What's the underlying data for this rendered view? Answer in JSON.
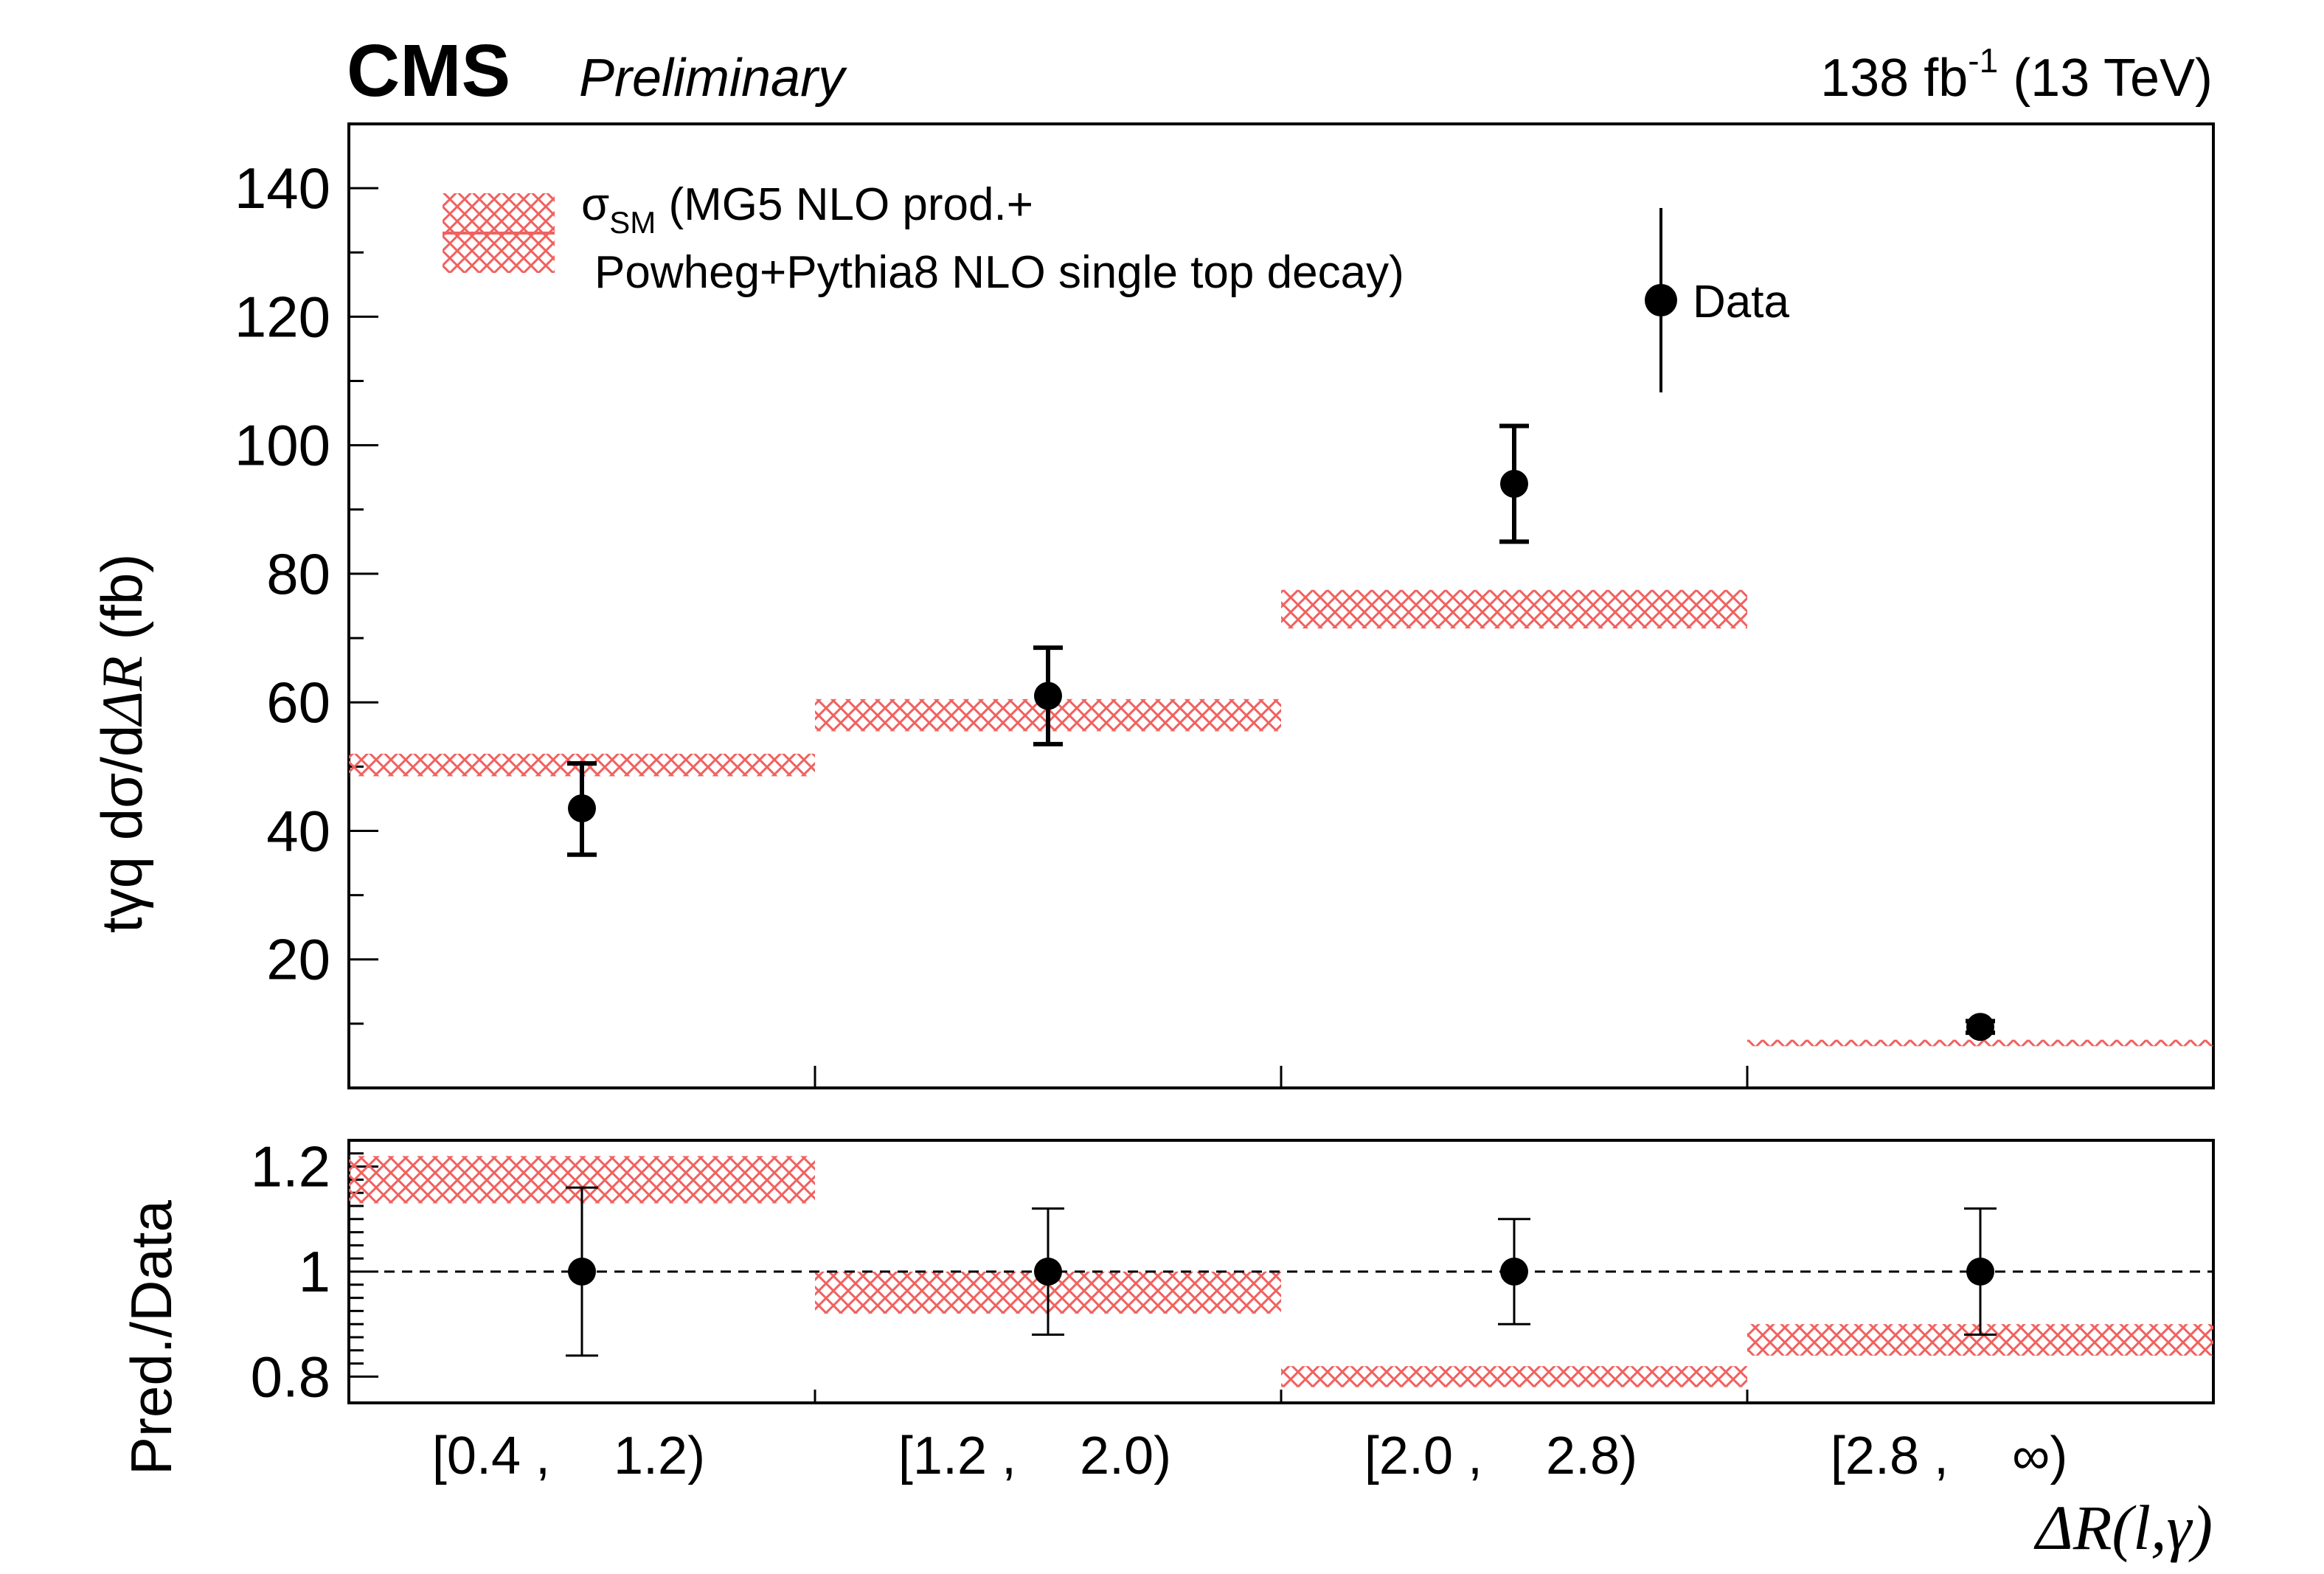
{
  "header": {
    "experiment": "CMS",
    "status": "Preliminary",
    "lumi_value": "138 fb",
    "lumi_exp": "-1",
    "energy": "(13 TeV)"
  },
  "legend": {
    "sm_symbol": "σ",
    "sm_subscript": "SM",
    "sm_line1": "(MG5 NLO prod.+",
    "sm_line2": "Powheg+Pythia8 NLO single top decay)",
    "data_label": "Data"
  },
  "colors": {
    "prediction": "#f0615f",
    "data": "#000000"
  },
  "chart_data": [
    {
      "type": "errorbar",
      "panel": "main",
      "ylabel_prefix": "tγq  dσ/d",
      "ylabel_symbol": "ΔR",
      "ylabel_unit": "(fb)",
      "ylim": [
        0,
        150
      ],
      "yticks": [
        20,
        40,
        60,
        80,
        100,
        120,
        140
      ],
      "categories": [
        "[0.4 ,",
        "[1.2 ,",
        "[2.0 ,",
        "[2.8 ,"
      ],
      "categories_upper": [
        "1.2)",
        "2.0)",
        "2.8)",
        "∞)"
      ],
      "series": [
        {
          "name": "Data",
          "values": [
            43.5,
            61,
            94,
            9.5
          ],
          "err_low": [
            7.2,
            7.5,
            9.0,
            0.9
          ],
          "err_high": [
            7.0,
            7.5,
            9.0,
            0.9
          ]
        },
        {
          "name": "σSM prediction",
          "values": [
            50.5,
            58,
            74.5,
            7
          ],
          "band_low": [
            48.5,
            55.5,
            71.5,
            6.5
          ],
          "band_high": [
            52,
            60.5,
            77.5,
            7.5
          ]
        }
      ]
    },
    {
      "type": "errorbar",
      "panel": "ratio",
      "ylabel": "Pred./Data",
      "ylim": [
        0.75,
        1.25
      ],
      "yticks": [
        0.8,
        1,
        1.2
      ],
      "ytick_labels": [
        "0.8",
        "1",
        "1.2"
      ],
      "reference_line": 1,
      "xlabel": "ΔR(l,γ)",
      "series": [
        {
          "name": "Data",
          "values": [
            1,
            1,
            1,
            1
          ],
          "err_low": [
            0.16,
            0.12,
            0.1,
            0.12
          ],
          "err_high": [
            0.16,
            0.12,
            0.1,
            0.12
          ]
        },
        {
          "name": "Prediction/Data",
          "band_low": [
            1.13,
            0.92,
            0.78,
            0.84
          ],
          "band_high": [
            1.22,
            1.0,
            0.82,
            0.9
          ]
        }
      ]
    }
  ]
}
